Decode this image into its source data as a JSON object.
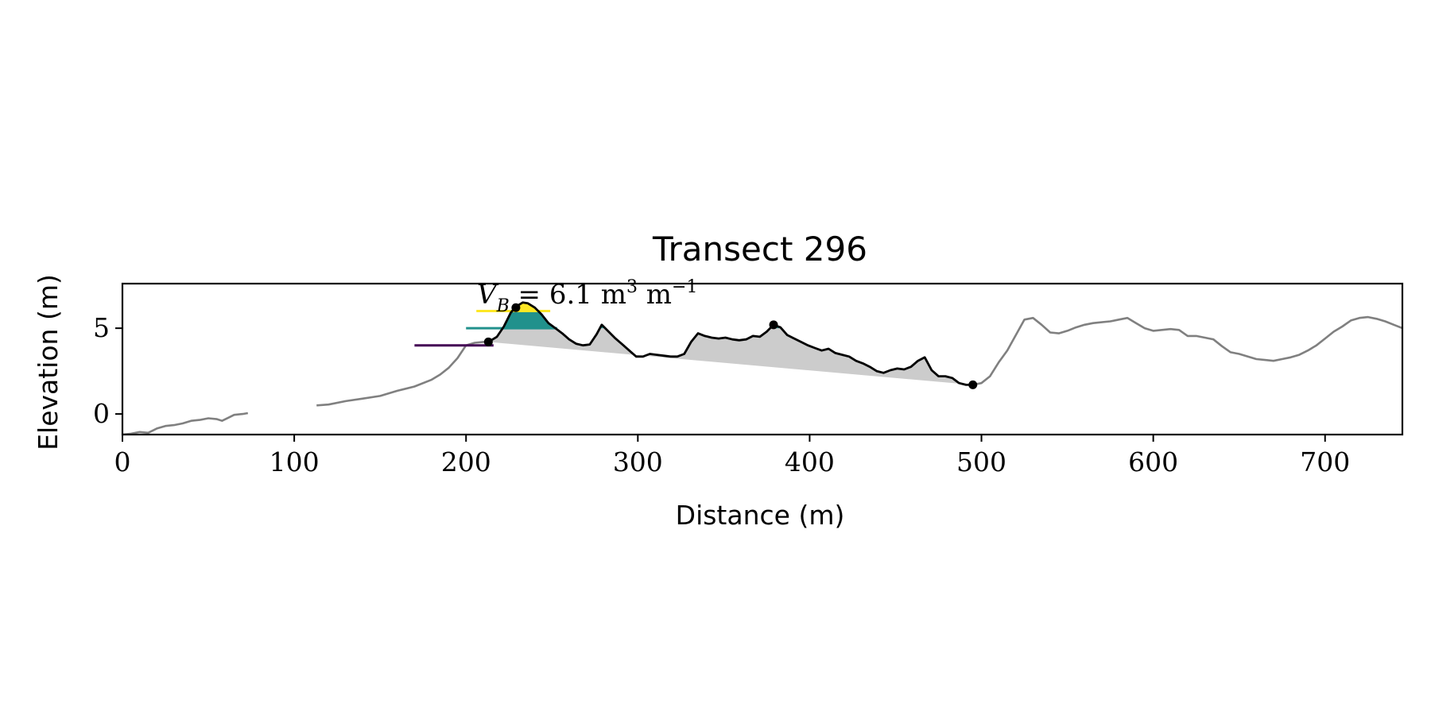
{
  "chart_data": {
    "type": "line",
    "title": "Transect 296",
    "xlabel": "Distance (m)",
    "ylabel": "Elevation (m)",
    "xlim": [
      0,
      745
    ],
    "ylim": [
      -1.2,
      7.6
    ],
    "xticks": [
      0,
      100,
      200,
      300,
      400,
      500,
      600,
      700
    ],
    "yticks": [
      0,
      5
    ],
    "grid": false,
    "annotation": {
      "symbol": "V",
      "subscript": "B",
      "text": " = 6.1 m",
      "sup": "3",
      "tail": " m",
      "sup2": "−1"
    },
    "colors": {
      "profile": "#808080",
      "dune_profile": "#000000",
      "fill_volume": "#cccccc",
      "level_high": "#fde725",
      "level_mid": "#21918c",
      "level_low": "#440154"
    },
    "series": [
      {
        "role": "profile",
        "segments": [
          [
            [
              0,
              -1.2
            ],
            [
              5,
              -1.15
            ],
            [
              10,
              -1.05
            ],
            [
              15,
              -1.1
            ],
            [
              20,
              -0.85
            ],
            [
              25,
              -0.7
            ],
            [
              30,
              -0.65
            ],
            [
              35,
              -0.55
            ],
            [
              40,
              -0.4
            ],
            [
              45,
              -0.35
            ],
            [
              50,
              -0.25
            ],
            [
              55,
              -0.3
            ],
            [
              58,
              -0.4
            ],
            [
              62,
              -0.2
            ],
            [
              65,
              -0.05
            ],
            [
              70,
              0
            ],
            [
              73,
              0.05
            ]
          ],
          [
            [
              113,
              0.5
            ],
            [
              120,
              0.55
            ],
            [
              130,
              0.75
            ],
            [
              140,
              0.9
            ],
            [
              150,
              1.05
            ],
            [
              160,
              1.35
            ],
            [
              170,
              1.6
            ],
            [
              180,
              2.0
            ],
            [
              185,
              2.3
            ],
            [
              190,
              2.7
            ],
            [
              195,
              3.25
            ],
            [
              200,
              4.0
            ],
            [
              205,
              4.15
            ],
            [
              210,
              4.2
            ],
            [
              213,
              4.2
            ]
          ],
          [
            [
              495,
              1.7
            ],
            [
              500,
              1.8
            ],
            [
              505,
              2.2
            ],
            [
              510,
              3.0
            ],
            [
              515,
              3.7
            ],
            [
              520,
              4.6
            ],
            [
              525,
              5.5
            ],
            [
              530,
              5.6
            ],
            [
              535,
              5.2
            ],
            [
              540,
              4.75
            ],
            [
              545,
              4.7
            ],
            [
              550,
              4.85
            ],
            [
              555,
              5.05
            ],
            [
              560,
              5.2
            ],
            [
              565,
              5.3
            ],
            [
              570,
              5.35
            ],
            [
              575,
              5.4
            ],
            [
              580,
              5.5
            ],
            [
              585,
              5.6
            ],
            [
              590,
              5.3
            ],
            [
              595,
              5.0
            ],
            [
              600,
              4.85
            ],
            [
              605,
              4.9
            ],
            [
              610,
              4.95
            ],
            [
              615,
              4.9
            ],
            [
              620,
              4.55
            ],
            [
              625,
              4.55
            ],
            [
              630,
              4.45
            ],
            [
              635,
              4.35
            ],
            [
              640,
              3.95
            ],
            [
              645,
              3.6
            ],
            [
              650,
              3.5
            ],
            [
              655,
              3.35
            ],
            [
              660,
              3.2
            ],
            [
              665,
              3.15
            ],
            [
              670,
              3.1
            ],
            [
              675,
              3.2
            ],
            [
              680,
              3.3
            ],
            [
              685,
              3.45
            ],
            [
              690,
              3.7
            ],
            [
              695,
              4.0
            ],
            [
              700,
              4.4
            ],
            [
              705,
              4.8
            ],
            [
              710,
              5.1
            ],
            [
              715,
              5.45
            ],
            [
              720,
              5.6
            ],
            [
              725,
              5.65
            ],
            [
              730,
              5.55
            ],
            [
              735,
              5.4
            ],
            [
              740,
              5.2
            ],
            [
              745,
              5.0
            ]
          ]
        ]
      },
      {
        "role": "dune_profile",
        "points": [
          [
            213,
            4.2
          ],
          [
            218,
            4.5
          ],
          [
            222,
            5.1
          ],
          [
            226,
            5.9
          ],
          [
            229,
            6.25
          ],
          [
            233,
            6.5
          ],
          [
            236,
            6.45
          ],
          [
            240,
            6.2
          ],
          [
            244,
            5.8
          ],
          [
            248,
            5.3
          ],
          [
            252,
            5.0
          ],
          [
            256,
            4.7
          ],
          [
            260,
            4.35
          ],
          [
            264,
            4.1
          ],
          [
            268,
            4.0
          ],
          [
            272,
            4.05
          ],
          [
            276,
            4.65
          ],
          [
            279,
            5.2
          ],
          [
            283,
            4.8
          ],
          [
            287,
            4.4
          ],
          [
            291,
            4.05
          ],
          [
            295,
            3.7
          ],
          [
            299,
            3.35
          ],
          [
            303,
            3.35
          ],
          [
            307,
            3.5
          ],
          [
            311,
            3.45
          ],
          [
            315,
            3.4
          ],
          [
            319,
            3.35
          ],
          [
            323,
            3.35
          ],
          [
            327,
            3.5
          ],
          [
            331,
            4.2
          ],
          [
            335,
            4.7
          ],
          [
            339,
            4.55
          ],
          [
            343,
            4.45
          ],
          [
            347,
            4.4
          ],
          [
            351,
            4.45
          ],
          [
            355,
            4.35
          ],
          [
            359,
            4.3
          ],
          [
            363,
            4.35
          ],
          [
            367,
            4.55
          ],
          [
            371,
            4.5
          ],
          [
            375,
            4.8
          ],
          [
            379,
            5.2
          ],
          [
            383,
            5.05
          ],
          [
            387,
            4.6
          ],
          [
            391,
            4.4
          ],
          [
            395,
            4.2
          ],
          [
            399,
            4.0
          ],
          [
            403,
            3.85
          ],
          [
            407,
            3.7
          ],
          [
            411,
            3.8
          ],
          [
            415,
            3.55
          ],
          [
            419,
            3.45
          ],
          [
            423,
            3.35
          ],
          [
            427,
            3.1
          ],
          [
            431,
            2.95
          ],
          [
            435,
            2.75
          ],
          [
            439,
            2.5
          ],
          [
            443,
            2.4
          ],
          [
            447,
            2.55
          ],
          [
            451,
            2.65
          ],
          [
            455,
            2.6
          ],
          [
            459,
            2.75
          ],
          [
            463,
            3.1
          ],
          [
            467,
            3.3
          ],
          [
            471,
            2.55
          ],
          [
            475,
            2.2
          ],
          [
            479,
            2.2
          ],
          [
            483,
            2.1
          ],
          [
            487,
            1.8
          ],
          [
            491,
            1.7
          ],
          [
            495,
            1.7
          ]
        ]
      }
    ],
    "markers": [
      [
        213,
        4.2
      ],
      [
        229,
        6.2
      ],
      [
        379,
        5.2
      ],
      [
        495,
        1.7
      ]
    ],
    "volume_baseline": [
      [
        213,
        4.2
      ],
      [
        495,
        1.7
      ]
    ],
    "level_lines": [
      {
        "name": "high",
        "y": 6.0,
        "x": [
          206,
          249
        ]
      },
      {
        "name": "mid",
        "y": 5.0,
        "x": [
          200,
          253
        ]
      },
      {
        "name": "low",
        "y": 4.0,
        "x": [
          170,
          216
        ]
      }
    ]
  }
}
